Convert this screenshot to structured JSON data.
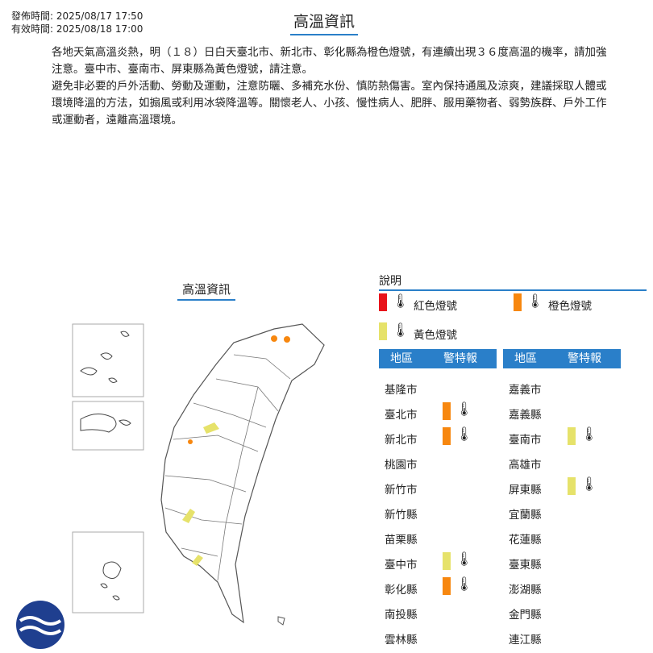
{
  "header": {
    "issued": "發佈時間: 2025/08/17 17:50",
    "valid": "有效時間: 2025/08/18 17:00",
    "title": "高溫資訊"
  },
  "body": {
    "p1": "各地天氣高溫炎熱，明（１８）日白天臺北市、新北市、彰化縣為橙色燈號，有連續出現３６度高溫的機率，請加強注意。臺中市、臺南市、屏東縣為黃色燈號，請注意。",
    "p2": "避免非必要的戶外活動、勞動及運動，注意防曬、多補充水份、慎防熱傷害。室內保持通風及涼爽，建議採取人體或環境降溫的方法，如搧風或利用冰袋降溫等。關懷老人、小孩、慢性病人、肥胖、服用藥物者、弱勢族群、戶外工作或運動者，遠離高溫環境。"
  },
  "map": {
    "title": "高溫資訊"
  },
  "legend": {
    "title": "說明",
    "red": "紅色燈號",
    "orange": "橙色燈號",
    "yellow": "黃色燈號"
  },
  "colors": {
    "red": "#e8131b",
    "orange": "#f7870f",
    "yellow": "#e6e26a",
    "accent": "#2a7fc9"
  },
  "table": {
    "col_region": "地區",
    "col_warning": "警特報",
    "left": [
      {
        "name": "基隆市",
        "level": ""
      },
      {
        "name": "臺北市",
        "level": "orange"
      },
      {
        "name": "新北市",
        "level": "orange"
      },
      {
        "name": "桃園市",
        "level": ""
      },
      {
        "name": "新竹市",
        "level": ""
      },
      {
        "name": "新竹縣",
        "level": ""
      },
      {
        "name": "苗栗縣",
        "level": ""
      },
      {
        "name": "臺中市",
        "level": "yellow"
      },
      {
        "name": "彰化縣",
        "level": "orange"
      },
      {
        "name": "南投縣",
        "level": ""
      },
      {
        "name": "雲林縣",
        "level": ""
      }
    ],
    "right": [
      {
        "name": "嘉義市",
        "level": ""
      },
      {
        "name": "嘉義縣",
        "level": ""
      },
      {
        "name": "臺南市",
        "level": "yellow"
      },
      {
        "name": "高雄市",
        "level": ""
      },
      {
        "name": "屏東縣",
        "level": "yellow"
      },
      {
        "name": "宜蘭縣",
        "level": ""
      },
      {
        "name": "花蓮縣",
        "level": ""
      },
      {
        "name": "臺東縣",
        "level": ""
      },
      {
        "name": "澎湖縣",
        "level": ""
      },
      {
        "name": "金門縣",
        "level": ""
      },
      {
        "name": "連江縣",
        "level": ""
      }
    ]
  }
}
